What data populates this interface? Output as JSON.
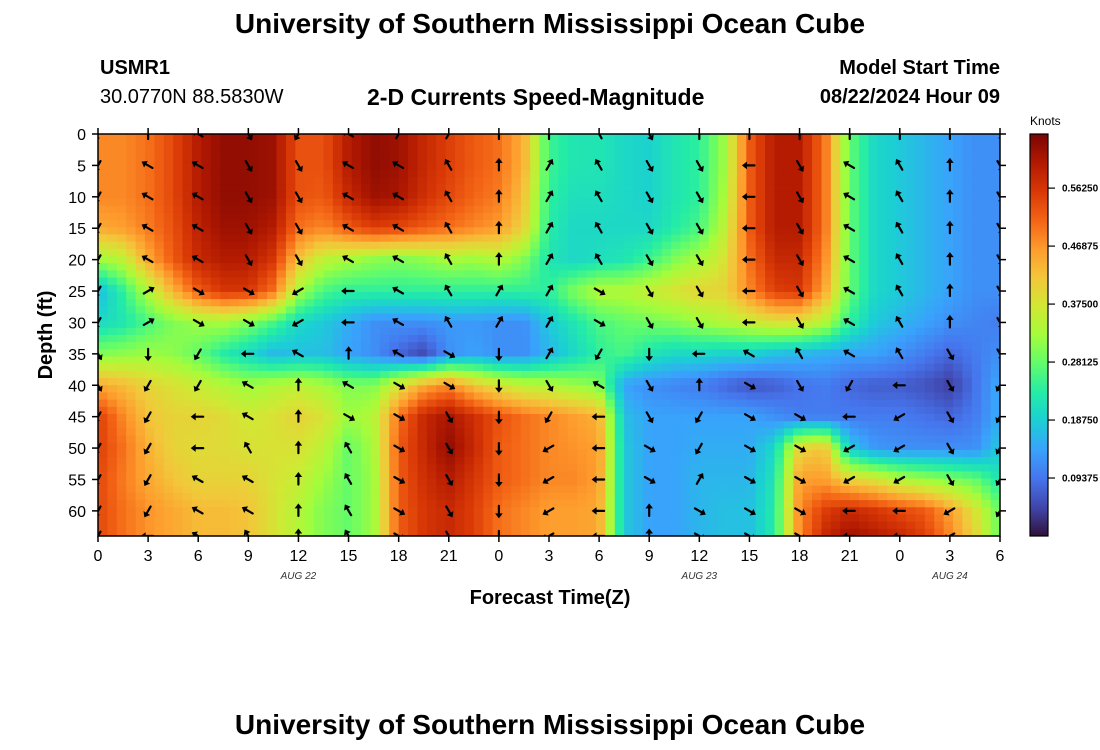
{
  "header": {
    "title": "University of Southern Mississippi Ocean Cube",
    "station_id": "USMR1",
    "coordinates": "30.0770N  88.5830W",
    "plot_title": "2-D Currents Speed-Magnitude",
    "model_start_label": "Model Start Time",
    "model_start_value": "08/22/2024 Hour 09"
  },
  "footer": {
    "title": "University of Southern Mississippi Ocean Cube"
  },
  "chart_data": {
    "type": "heatmap",
    "title": "2-D Currents Speed-Magnitude",
    "xlabel": "Forecast Time(Z)",
    "ylabel": "Depth (ft)",
    "x_tick_labels": [
      "0",
      "3",
      "6",
      "9",
      "12",
      "15",
      "18",
      "21",
      "0",
      "3",
      "6",
      "9",
      "12",
      "15",
      "18",
      "21",
      "0",
      "3",
      "6"
    ],
    "x_hours": [
      0,
      3,
      6,
      9,
      12,
      15,
      18,
      21,
      24,
      27,
      30,
      33,
      36,
      39,
      42,
      45,
      48,
      51,
      54
    ],
    "xlim": [
      0,
      54
    ],
    "y_ticks": [
      0,
      5,
      10,
      15,
      20,
      25,
      30,
      35,
      40,
      45,
      50,
      55,
      60
    ],
    "ylim": [
      0,
      64
    ],
    "date_labels": [
      {
        "label": "AUG 22",
        "hour": 12
      },
      {
        "label": "AUG 23",
        "hour": 36
      },
      {
        "label": "AUG 24",
        "hour": 51
      }
    ],
    "colorbar": {
      "label": "Knots",
      "min": 0.0,
      "max": 0.65,
      "tick_labels": [
        "0.56250",
        "0.46875",
        "0.37500",
        "0.28125",
        "0.18750",
        "0.09375"
      ],
      "tick_values": [
        0.5625,
        0.46875,
        0.375,
        0.28125,
        0.1875,
        0.09375
      ],
      "colors": [
        "#30123b",
        "#4145ab",
        "#4675ed",
        "#39a2fc",
        "#1bcfd4",
        "#24eca6",
        "#61fc6c",
        "#a4fc3b",
        "#d1e834",
        "#f3c63a",
        "#fe9b2d",
        "#f36315",
        "#d93806",
        "#b11901",
        "#7a0403"
      ]
    },
    "speed_grid": {
      "depths_ft": [
        0,
        5,
        10,
        15,
        20,
        25,
        30,
        35,
        40,
        45,
        50,
        55,
        60,
        64
      ],
      "hours": [
        0,
        1.5,
        3,
        4.5,
        6,
        7.5,
        9,
        10.5,
        12,
        13.5,
        15,
        16.5,
        18,
        19.5,
        21,
        22.5,
        24,
        25.5,
        27,
        28.5,
        30,
        31.5,
        33,
        34.5,
        36,
        37.5,
        39,
        40.5,
        42,
        43.5,
        45,
        46.5,
        48,
        49.5,
        51,
        52.5,
        54
      ],
      "values": [
        [
          0.48,
          0.48,
          0.5,
          0.54,
          0.6,
          0.63,
          0.63,
          0.62,
          0.53,
          0.53,
          0.6,
          0.63,
          0.62,
          0.58,
          0.55,
          0.52,
          0.5,
          0.44,
          0.25,
          0.22,
          0.22,
          0.2,
          0.19,
          0.22,
          0.24,
          0.32,
          0.52,
          0.6,
          0.6,
          0.5,
          0.28,
          0.2,
          0.18,
          0.16,
          0.14,
          0.12,
          0.12
        ],
        [
          0.48,
          0.48,
          0.5,
          0.54,
          0.6,
          0.63,
          0.63,
          0.62,
          0.53,
          0.53,
          0.6,
          0.63,
          0.62,
          0.58,
          0.55,
          0.52,
          0.5,
          0.44,
          0.25,
          0.22,
          0.22,
          0.2,
          0.19,
          0.22,
          0.24,
          0.32,
          0.52,
          0.6,
          0.6,
          0.5,
          0.28,
          0.2,
          0.18,
          0.16,
          0.14,
          0.12,
          0.12
        ],
        [
          0.48,
          0.48,
          0.5,
          0.54,
          0.6,
          0.63,
          0.63,
          0.62,
          0.53,
          0.52,
          0.58,
          0.62,
          0.61,
          0.57,
          0.54,
          0.51,
          0.49,
          0.42,
          0.24,
          0.21,
          0.21,
          0.2,
          0.19,
          0.22,
          0.24,
          0.33,
          0.52,
          0.6,
          0.6,
          0.5,
          0.28,
          0.2,
          0.18,
          0.16,
          0.14,
          0.12,
          0.12
        ],
        [
          0.45,
          0.46,
          0.49,
          0.53,
          0.59,
          0.62,
          0.62,
          0.6,
          0.5,
          0.48,
          0.52,
          0.55,
          0.54,
          0.52,
          0.5,
          0.48,
          0.46,
          0.4,
          0.23,
          0.2,
          0.2,
          0.2,
          0.2,
          0.23,
          0.26,
          0.35,
          0.52,
          0.6,
          0.6,
          0.5,
          0.28,
          0.2,
          0.18,
          0.16,
          0.14,
          0.12,
          0.12
        ],
        [
          0.32,
          0.35,
          0.45,
          0.52,
          0.58,
          0.6,
          0.6,
          0.56,
          0.42,
          0.35,
          0.33,
          0.31,
          0.3,
          0.31,
          0.33,
          0.32,
          0.34,
          0.3,
          0.22,
          0.2,
          0.21,
          0.22,
          0.25,
          0.3,
          0.33,
          0.38,
          0.5,
          0.58,
          0.58,
          0.48,
          0.28,
          0.2,
          0.18,
          0.16,
          0.14,
          0.12,
          0.12
        ],
        [
          0.16,
          0.24,
          0.34,
          0.44,
          0.52,
          0.56,
          0.56,
          0.5,
          0.33,
          0.26,
          0.24,
          0.24,
          0.24,
          0.24,
          0.24,
          0.24,
          0.24,
          0.24,
          0.24,
          0.3,
          0.34,
          0.34,
          0.36,
          0.38,
          0.4,
          0.4,
          0.48,
          0.55,
          0.56,
          0.45,
          0.28,
          0.2,
          0.18,
          0.16,
          0.14,
          0.12,
          0.12
        ],
        [
          0.2,
          0.22,
          0.26,
          0.3,
          0.32,
          0.33,
          0.3,
          0.26,
          0.2,
          0.18,
          0.15,
          0.12,
          0.12,
          0.12,
          0.13,
          0.13,
          0.12,
          0.12,
          0.18,
          0.22,
          0.26,
          0.28,
          0.29,
          0.3,
          0.32,
          0.34,
          0.36,
          0.38,
          0.38,
          0.34,
          0.24,
          0.18,
          0.16,
          0.14,
          0.12,
          0.11,
          0.1
        ],
        [
          0.3,
          0.31,
          0.32,
          0.31,
          0.28,
          0.23,
          0.2,
          0.16,
          0.17,
          0.17,
          0.14,
          0.12,
          0.08,
          0.05,
          0.12,
          0.14,
          0.12,
          0.12,
          0.16,
          0.2,
          0.24,
          0.26,
          0.22,
          0.2,
          0.2,
          0.19,
          0.19,
          0.17,
          0.16,
          0.15,
          0.14,
          0.14,
          0.12,
          0.1,
          0.08,
          0.1,
          0.12
        ],
        [
          0.45,
          0.43,
          0.4,
          0.38,
          0.36,
          0.34,
          0.32,
          0.34,
          0.35,
          0.33,
          0.3,
          0.3,
          0.38,
          0.45,
          0.48,
          0.42,
          0.38,
          0.35,
          0.34,
          0.32,
          0.3,
          0.14,
          0.12,
          0.11,
          0.1,
          0.08,
          0.06,
          0.07,
          0.09,
          0.1,
          0.08,
          0.07,
          0.07,
          0.06,
          0.04,
          0.09,
          0.15
        ],
        [
          0.55,
          0.48,
          0.42,
          0.4,
          0.4,
          0.39,
          0.37,
          0.38,
          0.4,
          0.38,
          0.32,
          0.34,
          0.5,
          0.58,
          0.61,
          0.57,
          0.53,
          0.5,
          0.48,
          0.46,
          0.44,
          0.17,
          0.14,
          0.14,
          0.14,
          0.14,
          0.14,
          0.12,
          0.1,
          0.1,
          0.1,
          0.1,
          0.1,
          0.09,
          0.08,
          0.1,
          0.15
        ],
        [
          0.55,
          0.5,
          0.44,
          0.4,
          0.39,
          0.39,
          0.38,
          0.38,
          0.38,
          0.35,
          0.28,
          0.33,
          0.52,
          0.58,
          0.63,
          0.58,
          0.52,
          0.5,
          0.48,
          0.47,
          0.46,
          0.18,
          0.14,
          0.14,
          0.15,
          0.15,
          0.15,
          0.2,
          0.4,
          0.42,
          0.18,
          0.13,
          0.12,
          0.12,
          0.12,
          0.12,
          0.18
        ],
        [
          0.54,
          0.49,
          0.45,
          0.42,
          0.4,
          0.4,
          0.4,
          0.38,
          0.36,
          0.32,
          0.28,
          0.32,
          0.52,
          0.57,
          0.6,
          0.56,
          0.52,
          0.5,
          0.48,
          0.48,
          0.46,
          0.18,
          0.14,
          0.14,
          0.16,
          0.16,
          0.16,
          0.22,
          0.46,
          0.46,
          0.4,
          0.38,
          0.34,
          0.32,
          0.3,
          0.28,
          0.22
        ],
        [
          0.54,
          0.5,
          0.47,
          0.45,
          0.43,
          0.43,
          0.42,
          0.38,
          0.34,
          0.3,
          0.28,
          0.32,
          0.52,
          0.56,
          0.58,
          0.55,
          0.5,
          0.48,
          0.46,
          0.46,
          0.45,
          0.18,
          0.14,
          0.14,
          0.16,
          0.17,
          0.17,
          0.23,
          0.48,
          0.55,
          0.58,
          0.56,
          0.54,
          0.52,
          0.46,
          0.38,
          0.28
        ],
        [
          0.54,
          0.5,
          0.47,
          0.45,
          0.43,
          0.43,
          0.42,
          0.38,
          0.34,
          0.3,
          0.28,
          0.32,
          0.52,
          0.56,
          0.58,
          0.55,
          0.5,
          0.48,
          0.46,
          0.46,
          0.45,
          0.18,
          0.14,
          0.14,
          0.16,
          0.17,
          0.17,
          0.23,
          0.48,
          0.58,
          0.62,
          0.6,
          0.58,
          0.55,
          0.48,
          0.4,
          0.28
        ]
      ]
    },
    "vectors": {
      "hours": [
        0,
        3,
        6,
        9,
        12,
        15,
        18,
        21,
        24,
        27,
        30,
        33,
        36,
        39,
        42,
        45,
        48,
        51,
        54
      ],
      "depths_ft": [
        0,
        5,
        10,
        15,
        20,
        25,
        30,
        35,
        40,
        45,
        50,
        55,
        60,
        64
      ],
      "directions_deg": [
        [
          210,
          0,
          300,
          150,
          210,
          300,
          30,
          30,
          0,
          0,
          330,
          150,
          0,
          0,
          0,
          0,
          0,
          0,
          150
        ],
        [
          210,
          300,
          300,
          150,
          150,
          300,
          300,
          330,
          0,
          30,
          330,
          150,
          150,
          270,
          150,
          300,
          330,
          0,
          150
        ],
        [
          210,
          300,
          300,
          150,
          150,
          300,
          300,
          330,
          0,
          30,
          330,
          150,
          150,
          270,
          150,
          300,
          330,
          0,
          150
        ],
        [
          210,
          300,
          300,
          150,
          150,
          300,
          300,
          330,
          0,
          30,
          330,
          150,
          150,
          270,
          150,
          300,
          330,
          0,
          150
        ],
        [
          210,
          300,
          300,
          150,
          150,
          300,
          300,
          330,
          0,
          30,
          330,
          150,
          150,
          270,
          150,
          300,
          330,
          0,
          150
        ],
        [
          210,
          60,
          120,
          120,
          240,
          270,
          300,
          330,
          30,
          30,
          120,
          150,
          150,
          270,
          150,
          300,
          330,
          0,
          150
        ],
        [
          210,
          60,
          120,
          120,
          240,
          270,
          300,
          330,
          30,
          30,
          120,
          150,
          150,
          270,
          150,
          300,
          330,
          0,
          150
        ],
        [
          150,
          180,
          210,
          270,
          300,
          0,
          300,
          120,
          180,
          30,
          210,
          180,
          270,
          300,
          330,
          300,
          330,
          150,
          150
        ],
        [
          150,
          210,
          210,
          300,
          0,
          300,
          120,
          120,
          180,
          150,
          300,
          150,
          0,
          120,
          150,
          210,
          270,
          150,
          210
        ],
        [
          210,
          210,
          270,
          300,
          0,
          120,
          120,
          150,
          180,
          210,
          270,
          150,
          210,
          120,
          120,
          270,
          240,
          150,
          210
        ],
        [
          210,
          210,
          270,
          330,
          0,
          330,
          120,
          150,
          180,
          240,
          270,
          120,
          210,
          120,
          120,
          240,
          240,
          150,
          210
        ],
        [
          210,
          210,
          300,
          300,
          0,
          330,
          120,
          150,
          180,
          240,
          270,
          120,
          30,
          120,
          120,
          240,
          240,
          150,
          210
        ],
        [
          210,
          210,
          300,
          300,
          0,
          330,
          120,
          150,
          180,
          240,
          270,
          0,
          120,
          120,
          120,
          270,
          270,
          240,
          210
        ],
        [
          210,
          270,
          300,
          330,
          0,
          330,
          120,
          150,
          180,
          240,
          270,
          0,
          120,
          120,
          120,
          270,
          270,
          240,
          210
        ]
      ]
    }
  }
}
